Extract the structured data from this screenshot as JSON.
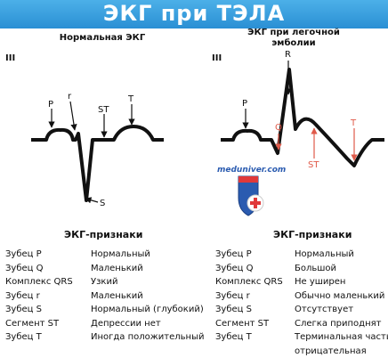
{
  "banner": {
    "title": "ЭКГ при ТЭЛА"
  },
  "normal_panel": {
    "title": "Нормальная ЭКГ",
    "lead": "III",
    "labels": {
      "p": "P",
      "r": "r",
      "st": "ST",
      "t": "T",
      "s": "S"
    }
  },
  "pe_panel": {
    "title_line1": "ЭКГ при легочной",
    "title_line2": "эмболии",
    "lead": "III",
    "labels": {
      "r": "R",
      "p": "P",
      "q": "Q",
      "st": "ST",
      "t": "T"
    }
  },
  "watermark": {
    "text": "meduniver.com"
  },
  "colors": {
    "banner": "#2a8fd4",
    "red_arrow": "#e05a4a",
    "trace": "#111111"
  },
  "normal_signs": {
    "title": "ЭКГ-признаки",
    "rows": [
      {
        "key": "Зубец P",
        "value": "Нормальный"
      },
      {
        "key": "Зубец Q",
        "value": "Маленький"
      },
      {
        "key": "Комплекс QRS",
        "value": "Узкий"
      },
      {
        "key": "Зубец r",
        "value": "Маленький"
      },
      {
        "key": "Зубец S",
        "value": "Нормальный (глубокий)"
      },
      {
        "key": "Сегмент ST",
        "value": "Депрессии нет"
      },
      {
        "key": "Зубец T",
        "value": "Иногда положительный"
      }
    ]
  },
  "pe_signs": {
    "title": "ЭКГ-признаки",
    "rows": [
      {
        "key": "Зубец P",
        "value": "Нормальный"
      },
      {
        "key": "Зубец Q",
        "value": "Большой"
      },
      {
        "key": "Комплекс QRS",
        "value": "Не уширен"
      },
      {
        "key": "Зубец r",
        "value": "Обычно маленький"
      },
      {
        "key": "Зубец S",
        "value": "Отсутствует"
      },
      {
        "key": "Сегмент ST",
        "value": "Слегка приподнят"
      },
      {
        "key": "Зубец T",
        "value": "Терминальная часть"
      },
      {
        "key": "",
        "value": "отрицательная"
      }
    ]
  }
}
